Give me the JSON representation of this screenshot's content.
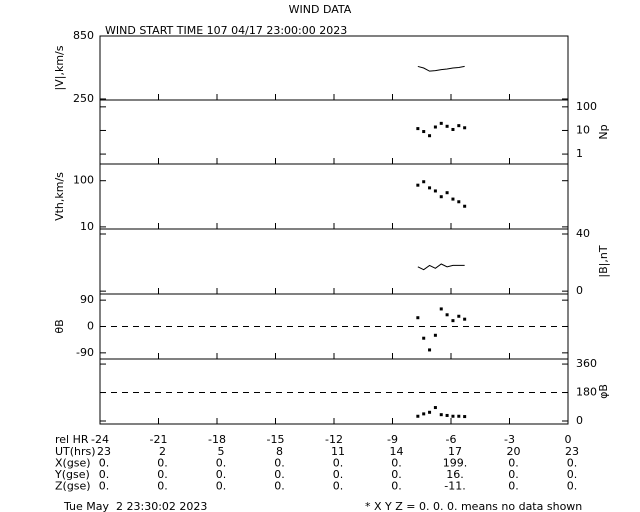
{
  "chart_data": [
    {
      "type": "line",
      "title": "WIND DATA",
      "subtitle": "WIND START TIME 107 04/17 23:00:00 2023",
      "y_label": "|V|,km/s",
      "label_side": "left",
      "ylim": [
        240,
        850
      ],
      "yticks": [
        250,
        850
      ],
      "x": [
        -7.7,
        -7.4,
        -7.1,
        -6.8,
        -6.5,
        -6.2,
        -5.9,
        -5.6,
        -5.3
      ],
      "values": [
        560,
        545,
        515,
        520,
        530,
        535,
        545,
        550,
        560
      ],
      "color": "#000000"
    },
    {
      "type": "scatter",
      "y_label": "Np",
      "label_side": "right",
      "log_scale": true,
      "ylim": [
        0.38,
        195
      ],
      "yticks": [
        1,
        10,
        100
      ],
      "x": [
        -7.7,
        -7.4,
        -7.1,
        -6.8,
        -6.5,
        -6.2,
        -5.9,
        -5.6,
        -5.3
      ],
      "values": [
        12,
        9,
        6,
        14,
        20,
        15,
        11,
        16,
        13
      ],
      "color": "#000000"
    },
    {
      "type": "scatter",
      "y_label": "Vth,km/s",
      "label_side": "left",
      "log_scale": true,
      "ylim": [
        9,
        230
      ],
      "yticks": [
        10,
        100
      ],
      "x": [
        -7.7,
        -7.4,
        -7.1,
        -6.8,
        -6.5,
        -6.2,
        -5.9,
        -5.6,
        -5.3
      ],
      "values": [
        80,
        95,
        70,
        60,
        45,
        55,
        40,
        35,
        28
      ],
      "color": "#000000"
    },
    {
      "type": "line",
      "y_label": "|B|,nT",
      "label_side": "right",
      "ylim": [
        -2,
        43.5
      ],
      "yticks": [
        0,
        40
      ],
      "x": [
        -7.7,
        -7.4,
        -7.1,
        -6.8,
        -6.5,
        -6.2,
        -5.9,
        -5.6,
        -5.3
      ],
      "values": [
        17,
        15,
        18,
        16,
        19,
        17,
        18,
        18,
        18
      ],
      "color": "#000000"
    },
    {
      "type": "scatter",
      "y_label": "θB",
      "label_side": "left",
      "ylim": [
        -111,
        111
      ],
      "yticks": [
        -90,
        0,
        90
      ],
      "hline": 0,
      "x": [
        -7.7,
        -7.4,
        -7.1,
        -6.8,
        -6.5,
        -6.2,
        -5.9,
        -5.6,
        -5.3
      ],
      "values": [
        30,
        -40,
        -80,
        -30,
        60,
        40,
        20,
        35,
        25
      ],
      "color": "#000000"
    },
    {
      "type": "scatter",
      "y_label": "φB",
      "label_side": "right",
      "ylim": [
        -19,
        392
      ],
      "yticks": [
        0,
        180,
        360
      ],
      "hline": 180,
      "x": [
        -7.7,
        -7.4,
        -7.1,
        -6.8,
        -6.5,
        -6.2,
        -5.9,
        -5.6,
        -5.3
      ],
      "values": [
        30,
        45,
        55,
        85,
        40,
        35,
        30,
        30,
        28
      ],
      "color": "#000000"
    }
  ],
  "axis": {
    "label": "rel HR",
    "xlim": [
      -24,
      0
    ],
    "xticks": [
      -24,
      -21,
      -18,
      -15,
      -12,
      -9,
      -6,
      -3,
      0
    ]
  },
  "table": [
    {
      "label": "UT(hrs)",
      "cells": [
        "23",
        "2",
        "5",
        "8",
        "11",
        "14",
        "17",
        "20",
        "23"
      ]
    },
    {
      "label": "X(gse)",
      "cells": [
        "0.",
        "0.",
        "0.",
        "0.",
        "0.",
        "0.",
        "199.",
        "0.",
        "0."
      ]
    },
    {
      "label": "Y(gse)",
      "cells": [
        "0.",
        "0.",
        "0.",
        "0.",
        "0.",
        "0.",
        "16.",
        "0.",
        "0."
      ]
    },
    {
      "label": "Z(gse)",
      "cells": [
        "0.",
        "0.",
        "0.",
        "0.",
        "0.",
        "0.",
        "-11.",
        "0.",
        "0."
      ]
    }
  ],
  "footer": {
    "date": "Tue May  2 23:30:02 2023",
    "note": "* X Y Z = 0. 0. 0. means no data shown"
  }
}
